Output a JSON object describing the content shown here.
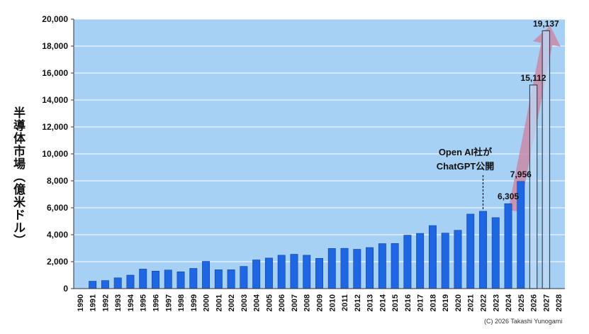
{
  "chart_data": {
    "type": "bar",
    "title": "",
    "xlabel": "",
    "ylabel": "半導体市場（億米ドル）",
    "ylim": [
      0,
      20000
    ],
    "yticks": [
      0,
      2000,
      4000,
      6000,
      8000,
      10000,
      12000,
      14000,
      16000,
      18000,
      20000
    ],
    "ytick_labels": [
      "0",
      "2,000",
      "4,000",
      "6,000",
      "8,000",
      "10,000",
      "12,000",
      "14,000",
      "16,000",
      "18,000",
      "20,000"
    ],
    "grid": true,
    "categories": [
      "1990",
      "1991",
      "1992",
      "1993",
      "1994",
      "1995",
      "1996",
      "1997",
      "1998",
      "1999",
      "2000",
      "2001",
      "2002",
      "2003",
      "2004",
      "2005",
      "2006",
      "2007",
      "2008",
      "2009",
      "2010",
      "2011",
      "2012",
      "2013",
      "2014",
      "2015",
      "2016",
      "2017",
      "2018",
      "2019",
      "2020",
      "2021",
      "2022",
      "2023",
      "2024",
      "2025",
      "2026",
      "2027",
      "2028"
    ],
    "values": [
      null,
      550,
      600,
      800,
      1000,
      1450,
      1300,
      1380,
      1250,
      1500,
      2020,
      1400,
      1400,
      1650,
      2130,
      2270,
      2480,
      2550,
      2480,
      2250,
      2980,
      2990,
      2920,
      3050,
      3340,
      3350,
      3970,
      4100,
      4680,
      4120,
      4330,
      5530,
      5740,
      5270,
      6305,
      7956,
      15112,
      19137,
      null
    ],
    "forecast_categories": [
      "2026",
      "2027"
    ],
    "data_labels": [
      {
        "category": "2024",
        "text": "6,305"
      },
      {
        "category": "2025",
        "text": "7,956"
      },
      {
        "category": "2026",
        "text": "15,112"
      },
      {
        "category": "2027",
        "text": "19,137"
      }
    ],
    "annotation": {
      "lines": [
        "Open AI社が",
        "ChatGPT公開"
      ],
      "category": "2022"
    },
    "colors": {
      "plot_background": "#a6d0f4",
      "bar": "#1f67e2",
      "bar_forecast": "#bcd9f6",
      "arrow": "#c98aa8",
      "grid": "#ffffff"
    }
  },
  "credit": "(C) 2026 Takashi Yunogami"
}
